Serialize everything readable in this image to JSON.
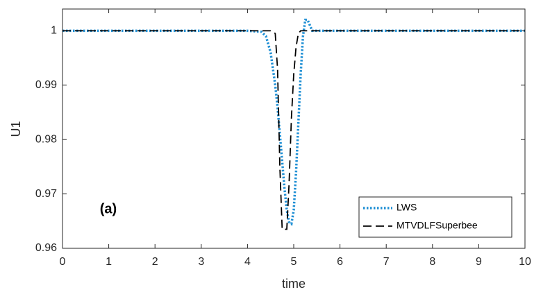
{
  "chart_data": {
    "type": "line",
    "xlabel": "time",
    "ylabel": "U1",
    "annotation": "(a)",
    "x": [
      0,
      4,
      4.3,
      4.4,
      4.5,
      4.6,
      4.65,
      4.7,
      4.75,
      4.8,
      4.85,
      4.9,
      4.95,
      5.0,
      5.05,
      5.1,
      5.15,
      5.2,
      5.25,
      5.3,
      5.35,
      5.4,
      5.5,
      6,
      10
    ],
    "series": [
      {
        "name": "LWS",
        "color": "#1f8fd4",
        "style": "dotted",
        "values": [
          1,
          1,
          0.9998,
          0.999,
          0.996,
          0.99,
          0.986,
          0.981,
          0.976,
          0.971,
          0.967,
          0.9648,
          0.9645,
          0.967,
          0.974,
          0.983,
          0.992,
          0.999,
          1.002,
          1.002,
          1.001,
          1,
          1,
          1,
          1
        ]
      },
      {
        "name": "MTVDLFSuperbee",
        "color": "#000000",
        "style": "dashed",
        "values": [
          1,
          1,
          1,
          1,
          1,
          0.9995,
          0.993,
          0.975,
          0.9635,
          0.9635,
          0.9635,
          0.972,
          0.984,
          0.992,
          0.997,
          0.9995,
          1,
          1,
          1,
          1,
          1,
          1,
          1,
          1,
          1
        ]
      }
    ],
    "xlim": [
      0,
      10
    ],
    "xticks": [
      0,
      1,
      2,
      3,
      4,
      5,
      6,
      7,
      8,
      9,
      10
    ],
    "ylim": [
      0.96,
      1.004
    ],
    "yticks": [
      0.96,
      0.97,
      0.98,
      0.99,
      1
    ],
    "legend": "lower right"
  }
}
